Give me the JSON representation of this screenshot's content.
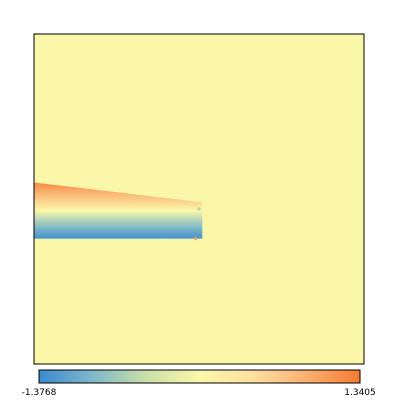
{
  "chart_data": {
    "type": "heatmap",
    "title": "",
    "xlabel": "",
    "ylabel": "",
    "colorbar": {
      "min": -1.3768,
      "max": 1.3405,
      "min_label": "-1.3768",
      "max_label": "1.3405",
      "orientation": "horizontal",
      "placement": "bottom",
      "colors": [
        "#3a8ad0",
        "#7fb8c8",
        "#c9e0a8",
        "#fbf7a8",
        "#fde0a0",
        "#fbb070",
        "#f57a30"
      ]
    },
    "background_value": 0.0,
    "field": {
      "description_values": [
        -1.3768,
        0.0,
        1.3405
      ],
      "band": {
        "x_range": [
          0.0,
          0.51
        ],
        "y_range": [
          0.45,
          0.62
        ],
        "top_edge_value": 1.2,
        "bottom_edge_value": -1.3,
        "center_value": 0.0
      },
      "spots": [
        {
          "x": 0.39,
          "y": 0.615,
          "value": -1.2
        },
        {
          "x": 0.49,
          "y": 0.62,
          "value": 1.0
        },
        {
          "x": 0.5,
          "y": 0.53,
          "value": -0.6
        }
      ]
    }
  }
}
